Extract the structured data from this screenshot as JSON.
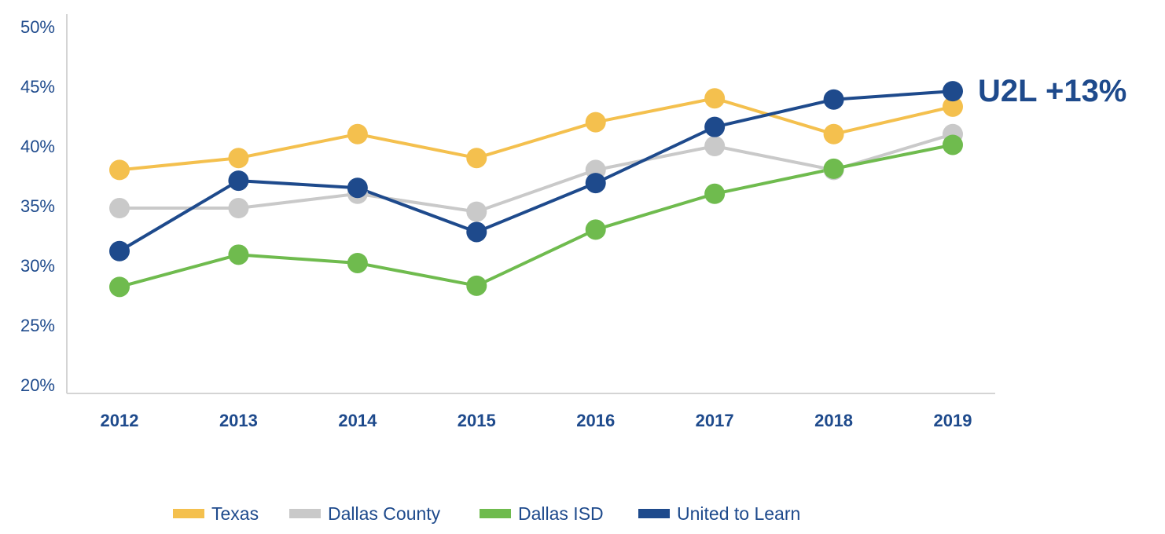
{
  "chart_data": {
    "type": "line",
    "title": "",
    "xlabel": "",
    "ylabel": "",
    "categories": [
      "2012",
      "2013",
      "2014",
      "2015",
      "2016",
      "2017",
      "2018",
      "2019"
    ],
    "y_ticks": [
      "20%",
      "25%",
      "30%",
      "35%",
      "40%",
      "45%",
      "50%"
    ],
    "ylim": [
      20,
      50
    ],
    "grid": false,
    "legend_position": "bottom",
    "series": [
      {
        "name": "Texas",
        "color": "#f4c04e",
        "values": [
          38,
          39,
          41,
          39,
          42,
          44,
          41,
          43.3
        ]
      },
      {
        "name": "Dallas County",
        "color": "#c9c9c9",
        "values": [
          34.8,
          34.8,
          36,
          34.5,
          38,
          40,
          38,
          41
        ]
      },
      {
        "name": "Dallas ISD",
        "color": "#6fbb4e",
        "values": [
          28.2,
          30.9,
          30.2,
          28.3,
          33,
          36,
          38.1,
          40.1
        ]
      },
      {
        "name": "United to Learn",
        "color": "#1e4a8c",
        "values": [
          31.2,
          37.1,
          36.5,
          32.8,
          36.9,
          41.6,
          43.9,
          44.6
        ]
      }
    ],
    "annotation": {
      "text": "U2L +13%",
      "series": "United to Learn",
      "category": "2019"
    }
  },
  "legend": [
    {
      "label": "Texas",
      "color": "#f4c04e"
    },
    {
      "label": "Dallas County",
      "color": "#c9c9c9"
    },
    {
      "label": "Dallas ISD",
      "color": "#6fbb4e"
    },
    {
      "label": "United to Learn",
      "color": "#1e4a8c"
    }
  ]
}
